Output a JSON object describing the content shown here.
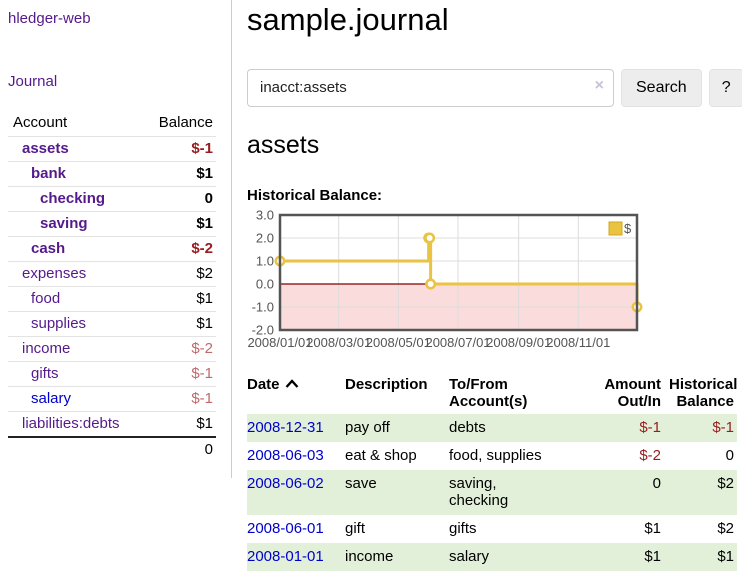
{
  "colors": {
    "link_purple": "#551a8b",
    "link_blue": "#0000cc",
    "negative_strong": "#991b1e",
    "negative_muted": "#c0696b",
    "row_green": "#e2f0da",
    "sidebar_separator": "#cccccc"
  },
  "sidebar": {
    "brand": "hledger-web",
    "journal_link": "Journal",
    "accounts_table": {
      "col_account": "Account",
      "col_balance": "Balance",
      "rows": [
        {
          "name": "assets",
          "balance": "$-1",
          "depth": 1,
          "bold": true,
          "balance_tone": "neg-strong"
        },
        {
          "name": "bank",
          "balance": "$1",
          "depth": 2,
          "bold": true,
          "balance_tone": ""
        },
        {
          "name": "checking",
          "balance": "0",
          "depth": 3,
          "bold": true,
          "balance_tone": ""
        },
        {
          "name": "saving",
          "balance": "$1",
          "depth": 3,
          "bold": true,
          "balance_tone": ""
        },
        {
          "name": "cash",
          "balance": "$-2",
          "depth": 2,
          "bold": true,
          "balance_tone": "neg-strong"
        },
        {
          "name": "expenses",
          "balance": "$2",
          "depth": 1,
          "bold": false,
          "balance_tone": ""
        },
        {
          "name": "food",
          "balance": "$1",
          "depth": 2,
          "bold": false,
          "balance_tone": ""
        },
        {
          "name": "supplies",
          "balance": "$1",
          "depth": 2,
          "bold": false,
          "balance_tone": ""
        },
        {
          "name": "income",
          "balance": "$-2",
          "depth": 1,
          "bold": false,
          "balance_tone": "neg-muted"
        },
        {
          "name": "gifts",
          "balance": "$-1",
          "depth": 2,
          "bold": false,
          "balance_tone": "neg-muted"
        },
        {
          "name": "salary",
          "balance": "$-1",
          "depth": 2,
          "bold": false,
          "balance_tone": "neg-muted",
          "link_blue": true
        },
        {
          "name": "liabilities:debts",
          "balance": "$1",
          "depth": 1,
          "bold": false,
          "balance_tone": ""
        }
      ],
      "total": "0"
    }
  },
  "main": {
    "title": "sample.journal",
    "account_heading": "assets",
    "chart_title": "Historical Balance:"
  },
  "search": {
    "value": "inacct:assets",
    "clear_icon": "×",
    "button_label": "Search",
    "help_label": "?"
  },
  "chart_data": {
    "type": "line",
    "step": true,
    "title": "Historical Balance:",
    "series": [
      {
        "name": "$",
        "points": [
          [
            "2008-01-01",
            1
          ],
          [
            "2008-06-01",
            2
          ],
          [
            "2008-06-02",
            2
          ],
          [
            "2008-06-03",
            0
          ],
          [
            "2008-12-31",
            -1
          ]
        ]
      }
    ],
    "x_range": [
      "2008-01-01",
      "2008-12-31"
    ],
    "ylim": [
      -2,
      3
    ],
    "y_ticks": [
      3,
      2,
      1,
      0,
      -1,
      -2
    ],
    "y_tick_labels": [
      "3.0",
      "2.0",
      "1.0",
      "0.0",
      "-1.0",
      "-2.0"
    ],
    "x_ticks": [
      "2008-01-01",
      "2008-03-01",
      "2008-05-01",
      "2008-07-01",
      "2008-09-01",
      "2008-11-01"
    ],
    "x_tick_labels": [
      "2008/01/01",
      "2008/03/01",
      "2008/05/01",
      "2008/07/01",
      "2008/09/01",
      "2008/11/01"
    ],
    "legend": {
      "label": "$",
      "position": "top-right"
    },
    "grid": true,
    "colors": {
      "line": "#e9c341",
      "point_fill": "#ffffff",
      "negative_region": "#fbdcdc",
      "zero_line": "#800000",
      "grid": "#dcdcdc",
      "border": "#545454",
      "axis_text": "#545454",
      "legend_border": "#cfa822"
    }
  },
  "register_table": {
    "headers": [
      {
        "label": "Date",
        "align": "left",
        "sortable": true,
        "sort": "asc"
      },
      {
        "label": "Description",
        "align": "left"
      },
      {
        "label": "To/From Account(s)",
        "align": "left"
      },
      {
        "label": "Amount Out/In",
        "align": "right"
      },
      {
        "label": "Historical Balance",
        "align": "right"
      }
    ],
    "rows": [
      {
        "date": "2008-12-31",
        "description": "pay off",
        "accounts": "debts",
        "amount": "$-1",
        "amount_tone": "neg-strong",
        "balance": "$-1",
        "balance_tone": "neg-strong"
      },
      {
        "date": "2008-06-03",
        "description": "eat & shop",
        "accounts": "food, supplies",
        "amount": "$-2",
        "amount_tone": "neg-strong",
        "balance": "0",
        "balance_tone": ""
      },
      {
        "date": "2008-06-02",
        "description": "save",
        "accounts": "saving,\nchecking",
        "amount": "0",
        "amount_tone": "",
        "balance": "$2",
        "balance_tone": ""
      },
      {
        "date": "2008-06-01",
        "description": "gift",
        "accounts": "gifts",
        "amount": "$1",
        "amount_tone": "",
        "balance": "$2",
        "balance_tone": ""
      },
      {
        "date": "2008-01-01",
        "description": "income",
        "accounts": "salary",
        "amount": "$1",
        "amount_tone": "",
        "balance": "$1",
        "balance_tone": ""
      }
    ]
  }
}
